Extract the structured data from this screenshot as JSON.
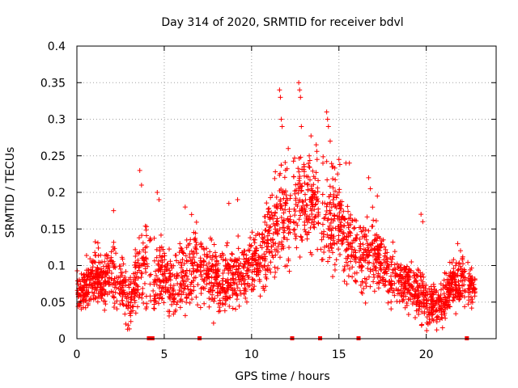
{
  "chart_data": {
    "type": "scatter",
    "title": "Day 314 of 2020, SRMTID for receiver bdvl",
    "xlabel": "GPS time / hours",
    "ylabel": "SRMTID / TECUs",
    "xlim": [
      0,
      24
    ],
    "ylim": [
      0,
      0.4
    ],
    "xticks": [
      "0",
      "5",
      "10",
      "15",
      "20"
    ],
    "yticks": [
      "0",
      "0.05",
      "0.1",
      "0.15",
      "0.2",
      "0.25",
      "0.3",
      "0.35",
      "0.4"
    ],
    "grid": true,
    "marker": "+",
    "color": "#ff0000",
    "gap_markers_x": [
      4.1,
      4.3,
      7.0,
      12.3,
      13.9,
      16.1,
      22.3
    ],
    "profile_hours": [
      0,
      0.5,
      1,
      1.5,
      2,
      2.5,
      3,
      3.5,
      4,
      4.5,
      5,
      5.5,
      6,
      6.5,
      7,
      7.5,
      8,
      8.5,
      9,
      9.5,
      10,
      10.5,
      11,
      11.5,
      12,
      12.5,
      13,
      13.5,
      14,
      14.5,
      15,
      15.5,
      16,
      16.5,
      17,
      17.5,
      18,
      18.5,
      19,
      19.5,
      20,
      20.5,
      21,
      21.5,
      22,
      22.5,
      22.8
    ],
    "profile_median": [
      0.065,
      0.07,
      0.085,
      0.08,
      0.09,
      0.08,
      0.05,
      0.09,
      0.1,
      0.08,
      0.085,
      0.07,
      0.08,
      0.1,
      0.095,
      0.09,
      0.075,
      0.08,
      0.085,
      0.09,
      0.1,
      0.11,
      0.13,
      0.16,
      0.17,
      0.18,
      0.2,
      0.19,
      0.17,
      0.16,
      0.17,
      0.13,
      0.12,
      0.11,
      0.12,
      0.1,
      0.09,
      0.08,
      0.075,
      0.065,
      0.05,
      0.045,
      0.05,
      0.075,
      0.08,
      0.07,
      0.07
    ],
    "profile_spread": [
      0.025,
      0.03,
      0.035,
      0.03,
      0.035,
      0.035,
      0.03,
      0.04,
      0.05,
      0.04,
      0.035,
      0.035,
      0.04,
      0.045,
      0.04,
      0.04,
      0.035,
      0.035,
      0.035,
      0.035,
      0.035,
      0.04,
      0.05,
      0.055,
      0.06,
      0.06,
      0.06,
      0.06,
      0.06,
      0.055,
      0.055,
      0.045,
      0.045,
      0.04,
      0.04,
      0.035,
      0.035,
      0.03,
      0.03,
      0.03,
      0.025,
      0.02,
      0.025,
      0.03,
      0.03,
      0.025,
      0.02
    ],
    "outliers": [
      {
        "x": 3.6,
        "y": 0.23
      },
      {
        "x": 3.7,
        "y": 0.21
      },
      {
        "x": 4.6,
        "y": 0.2
      },
      {
        "x": 4.7,
        "y": 0.19
      },
      {
        "x": 2.1,
        "y": 0.175
      },
      {
        "x": 6.2,
        "y": 0.18
      },
      {
        "x": 8.7,
        "y": 0.185
      },
      {
        "x": 9.2,
        "y": 0.19
      },
      {
        "x": 11.6,
        "y": 0.34
      },
      {
        "x": 11.65,
        "y": 0.33
      },
      {
        "x": 11.7,
        "y": 0.3
      },
      {
        "x": 11.75,
        "y": 0.29
      },
      {
        "x": 12.1,
        "y": 0.26
      },
      {
        "x": 12.7,
        "y": 0.35
      },
      {
        "x": 12.75,
        "y": 0.34
      },
      {
        "x": 12.8,
        "y": 0.33
      },
      {
        "x": 12.85,
        "y": 0.29
      },
      {
        "x": 13.3,
        "y": 0.25
      },
      {
        "x": 13.7,
        "y": 0.265
      },
      {
        "x": 13.75,
        "y": 0.245
      },
      {
        "x": 14.3,
        "y": 0.31
      },
      {
        "x": 14.35,
        "y": 0.3
      },
      {
        "x": 14.4,
        "y": 0.29
      },
      {
        "x": 14.5,
        "y": 0.27
      },
      {
        "x": 15.0,
        "y": 0.245
      },
      {
        "x": 15.4,
        "y": 0.24
      },
      {
        "x": 15.6,
        "y": 0.24
      },
      {
        "x": 16.7,
        "y": 0.22
      },
      {
        "x": 16.8,
        "y": 0.205
      },
      {
        "x": 17.2,
        "y": 0.195
      },
      {
        "x": 19.7,
        "y": 0.17
      },
      {
        "x": 19.8,
        "y": 0.16
      },
      {
        "x": 21.8,
        "y": 0.13
      },
      {
        "x": 20.6,
        "y": 0.012
      },
      {
        "x": 2.9,
        "y": 0.013
      },
      {
        "x": 2.8,
        "y": 0.02
      }
    ]
  }
}
